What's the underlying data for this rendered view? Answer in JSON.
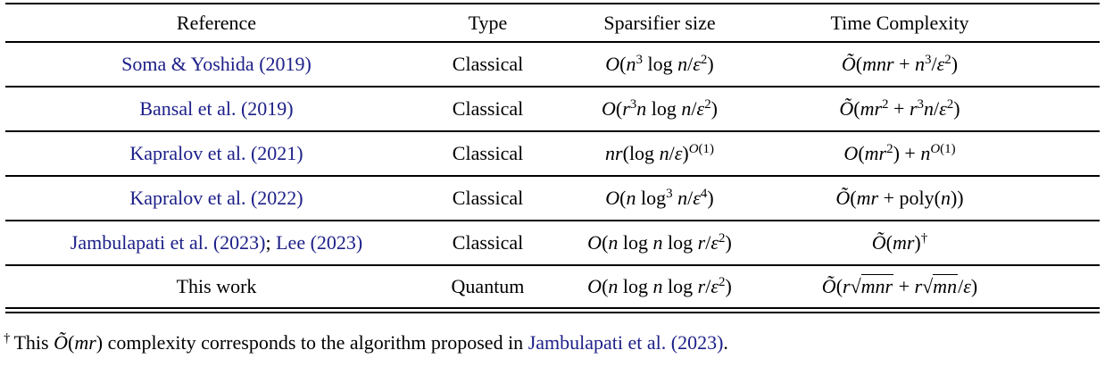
{
  "theme": {
    "link_color": "#1d2088",
    "text_color": "#000000",
    "rule_color": "#000000",
    "background": "#ffffff"
  },
  "table": {
    "headers": [
      {
        "label": "Reference"
      },
      {
        "label": "Type"
      },
      {
        "label": "Sparsifier size"
      },
      {
        "label": "Time Complexity"
      }
    ],
    "rows": [
      {
        "reference": [
          {
            "link": "Soma & Yoshida (2019)"
          }
        ],
        "type": "Classical",
        "sparsifier": "O(n^{3} \\log n/ε^{2})",
        "time": "~O(mnr + n^{3}/ε^{2})"
      },
      {
        "reference": [
          {
            "link": "Bansal et al. (2019)"
          }
        ],
        "type": "Classical",
        "sparsifier": "O(r^{3}n \\log n/ε^{2})",
        "time": "~O(mr^{2} + r^{3}n/ε^{2})"
      },
      {
        "reference": [
          {
            "link": "Kapralov et al. (2021)"
          }
        ],
        "type": "Classical",
        "sparsifier": "nr(\\log n/ε)^{O(1)}",
        "time": "O(mr^{2}) + n^{O(1)}"
      },
      {
        "reference": [
          {
            "link": "Kapralov et al. (2022)"
          }
        ],
        "type": "Classical",
        "sparsifier": "O(n \\log^{3} n/ε^{4})",
        "time": "~O(mr + \\poly(n))"
      },
      {
        "reference": [
          {
            "link": "Jambulapati et al. (2023)"
          },
          {
            "text": "; "
          },
          {
            "link": "Lee (2023)"
          }
        ],
        "type": "Classical",
        "sparsifier": "O(n \\log n \\log r/ε^{2})",
        "time": "~O(mr)^{†}"
      },
      {
        "reference": [
          {
            "text": "This work"
          }
        ],
        "type": "Quantum",
        "sparsifier": "O(n \\log n \\log r/ε^{2})",
        "time": "~O(r√{mnr} + r√{mn}/ε)"
      }
    ]
  },
  "footnote": {
    "marker": "†",
    "segments": [
      {
        "text": "This "
      },
      {
        "math": "~O(mr)"
      },
      {
        "text": " complexity corresponds to the algorithm proposed in "
      },
      {
        "link": "Jambulapati et al. (2023)"
      },
      {
        "text": "."
      }
    ]
  }
}
